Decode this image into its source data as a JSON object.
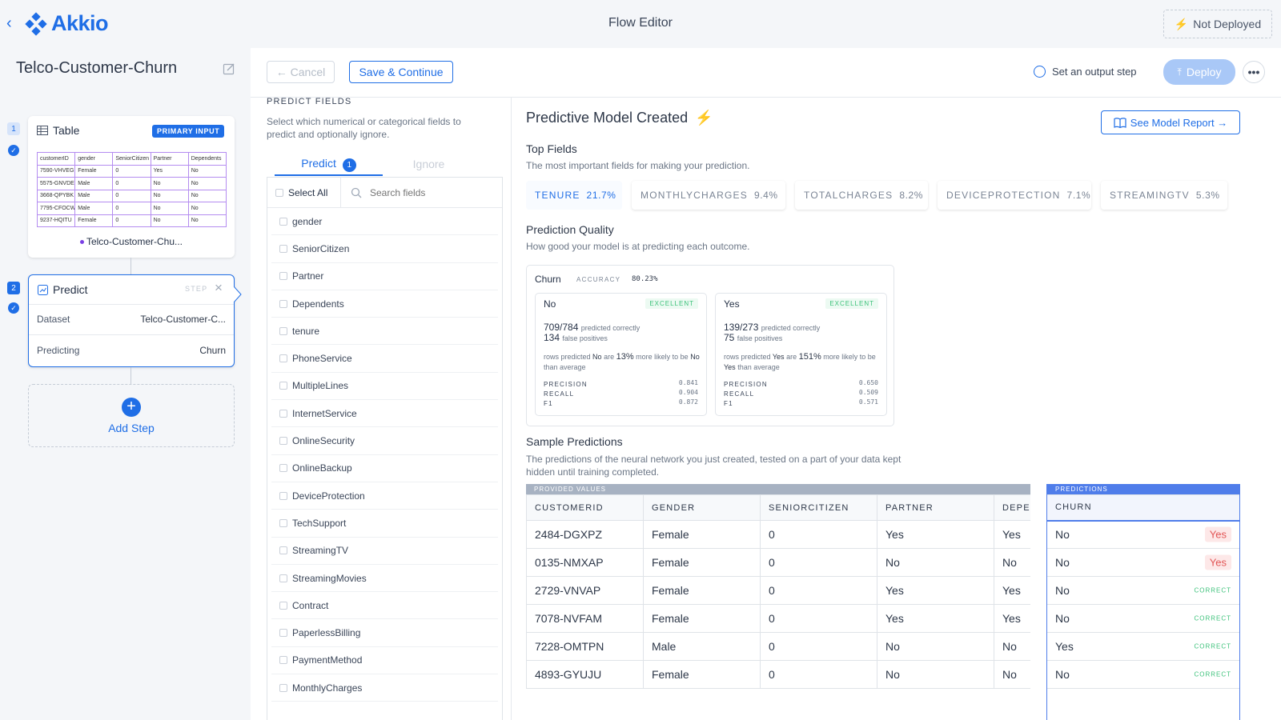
{
  "header": {
    "logo_text": "Akkio",
    "title": "Flow Editor",
    "deploy_state": "Not Deployed"
  },
  "project": {
    "name": "Telco-Customer-Churn"
  },
  "steps": {
    "table": {
      "number": "1",
      "title": "Table",
      "badge": "PRIMARY INPUT",
      "columns": [
        "customerID",
        "gender",
        "SeniorCitizen",
        "Partner",
        "Dependents"
      ],
      "rows": [
        [
          "7590-VHVEG",
          "Female",
          "0",
          "Yes",
          "No"
        ],
        [
          "5575-GNVDE",
          "Male",
          "0",
          "No",
          "No"
        ],
        [
          "3668-QPYBK",
          "Male",
          "0",
          "No",
          "No"
        ],
        [
          "7795-CFOCW",
          "Male",
          "0",
          "No",
          "No"
        ],
        [
          "9237-HQITU",
          "Female",
          "0",
          "No",
          "No"
        ]
      ],
      "dataset_label": "Telco-Customer-Chu..."
    },
    "predict": {
      "number": "2",
      "title": "Predict",
      "tag": "STEP",
      "dataset_key": "Dataset",
      "dataset_value": "Telco-Customer-C...",
      "predicting_key": "Predicting",
      "predicting_value": "Churn"
    },
    "add_step_label": "Add Step"
  },
  "toolbar": {
    "cancel_label": "← Cancel",
    "save_label": "Save & Continue",
    "output_step_label": "Set an output step",
    "deploy_label": "Deploy"
  },
  "predict_fields": {
    "title": "PREDICT FIELDS",
    "description": "Select which numerical or categorical fields to predict and optionally ignore.",
    "tab_predict": "Predict",
    "tab_predict_count": "1",
    "tab_ignore": "Ignore",
    "select_all": "Select All",
    "search_placeholder": "Search fields",
    "fields": [
      "gender",
      "SeniorCitizen",
      "Partner",
      "Dependents",
      "tenure",
      "PhoneService",
      "MultipleLines",
      "InternetService",
      "OnlineSecurity",
      "OnlineBackup",
      "DeviceProtection",
      "TechSupport",
      "StreamingTV",
      "StreamingMovies",
      "Contract",
      "PaperlessBilling",
      "PaymentMethod",
      "MonthlyCharges"
    ]
  },
  "model": {
    "title": "Predictive Model Created",
    "report_button": "See Model Report →",
    "top_fields_title": "Top Fields",
    "top_fields_desc": "The most important fields for making your prediction.",
    "top_fields": [
      {
        "name": "TENURE",
        "pct": "21.7%"
      },
      {
        "name": "MONTHLYCHARGES",
        "pct": "9.4%"
      },
      {
        "name": "TOTALCHARGES",
        "pct": "8.2%"
      },
      {
        "name": "DEVICEPROTECTION",
        "pct": "7.1%"
      },
      {
        "name": "STREAMINGTV",
        "pct": "5.3%"
      }
    ],
    "quality_title": "Prediction Quality",
    "quality_desc": "How good your model is at predicting each outcome.",
    "quality": {
      "target": "Churn",
      "accuracy_label": "ACCURACY",
      "accuracy": "80.23%",
      "outcomes": [
        {
          "label": "No",
          "rating": "EXCELLENT",
          "correct": "709/784",
          "correct_text": "predicted correctly",
          "fp": "134",
          "fp_text": "false positives",
          "lift_pre": "rows predicted",
          "lift_value": "No",
          "lift_mid": "are",
          "lift_pct": "13%",
          "lift_post": "more likely to be",
          "lift_target": "No",
          "lift_end": "than average",
          "precision": "0.841",
          "recall": "0.904",
          "f1": "0.872"
        },
        {
          "label": "Yes",
          "rating": "EXCELLENT",
          "correct": "139/273",
          "correct_text": "predicted correctly",
          "fp": "75",
          "fp_text": "false positives",
          "lift_pre": "rows predicted",
          "lift_value": "Yes",
          "lift_mid": "are",
          "lift_pct": "151%",
          "lift_post": "more likely to be",
          "lift_target": "Yes",
          "lift_end": "than average",
          "precision": "0.650",
          "recall": "0.509",
          "f1": "0.571"
        }
      ],
      "precision_label": "PRECISION",
      "recall_label": "RECALL",
      "f1_label": "F1"
    },
    "samples_title": "Sample Predictions",
    "samples_desc": "The predictions of the neural network you just created, tested on a part of your data kept hidden until training completed.",
    "provided_label": "PROVIDED VALUES",
    "predictions_label": "PREDICTIONS",
    "sample_columns": [
      "CUSTOMERID",
      "GENDER",
      "SENIORCITIZEN",
      "PARTNER",
      "DEPEN"
    ],
    "prediction_column": "CHURN",
    "sample_rows": [
      {
        "cells": [
          "2484-DGXPZ",
          "Female",
          "0",
          "Yes",
          "Yes"
        ],
        "actual": "No",
        "predicted": "Yes",
        "correct": false
      },
      {
        "cells": [
          "0135-NMXAP",
          "Female",
          "0",
          "No",
          "No"
        ],
        "actual": "No",
        "predicted": "Yes",
        "correct": false
      },
      {
        "cells": [
          "2729-VNVAP",
          "Female",
          "0",
          "Yes",
          "Yes"
        ],
        "actual": "No",
        "predicted": "CORRECT",
        "correct": true
      },
      {
        "cells": [
          "7078-NVFAM",
          "Female",
          "0",
          "Yes",
          "Yes"
        ],
        "actual": "No",
        "predicted": "CORRECT",
        "correct": true
      },
      {
        "cells": [
          "7228-OMTPN",
          "Male",
          "0",
          "No",
          "No"
        ],
        "actual": "Yes",
        "predicted": "CORRECT",
        "correct": true
      },
      {
        "cells": [
          "4893-GYUJU",
          "Female",
          "0",
          "No",
          "No"
        ],
        "actual": "No",
        "predicted": "CORRECT",
        "correct": true
      }
    ]
  },
  "colors": {
    "accent": "#1f6ee6",
    "success": "#3cc27a",
    "error": "#e25555",
    "lightning": "#f5c518"
  }
}
